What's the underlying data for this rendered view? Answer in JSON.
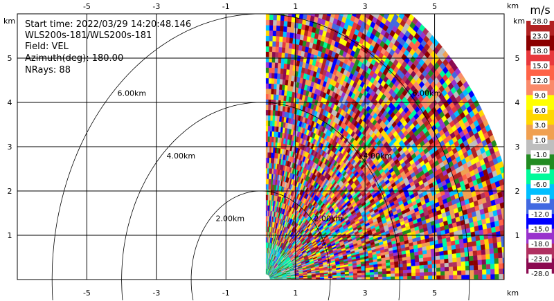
{
  "chart_data": {
    "type": "heatmap",
    "subtype": "radar-ppi",
    "info_lines": [
      "Start time: 2022/03/29 14:20:48.146",
      "WLS200s-181/WLS200s-181",
      "Field: VEL",
      "Azimuth(deg): 180.00",
      "NRays: 88"
    ],
    "xlim": [
      -7,
      7
    ],
    "ylim": [
      0,
      6
    ],
    "x_unit": "km",
    "y_unit": "km",
    "x_ticks": [
      -5,
      -3,
      -1,
      1,
      3,
      5
    ],
    "y_ticks": [
      1,
      2,
      3,
      4,
      5
    ],
    "grid": true,
    "range_rings_km": [
      2,
      4,
      6
    ],
    "range_ring_labels": [
      "2.00km",
      "4.00km",
      "6.00km"
    ],
    "sector_azimuth_deg": [
      0,
      90
    ],
    "max_range_km": 7.3,
    "colorbar": {
      "title": "m/s",
      "position": "right",
      "boundaries": [
        "28.0",
        "23.0",
        "18.0",
        "15.0",
        "12.0",
        "9.0",
        "6.0",
        "3.0",
        "1.0",
        "-1.0",
        "-3.0",
        "-6.0",
        "-9.0",
        "-12.0",
        "-15.0",
        "-18.0",
        "-23.0",
        "-28.0"
      ],
      "colors": [
        "#b22222",
        "#8b0000",
        "#e8383c",
        "#ff6347",
        "#fa8a6a",
        "#ffff00",
        "#ffd700",
        "#f0a050",
        "#bebebe",
        "#228b22",
        "#00fa9a",
        "#00bfff",
        "#4169e1",
        "#0000ff",
        "#9932cc",
        "#b03060",
        "#8b0a50"
      ]
    }
  }
}
